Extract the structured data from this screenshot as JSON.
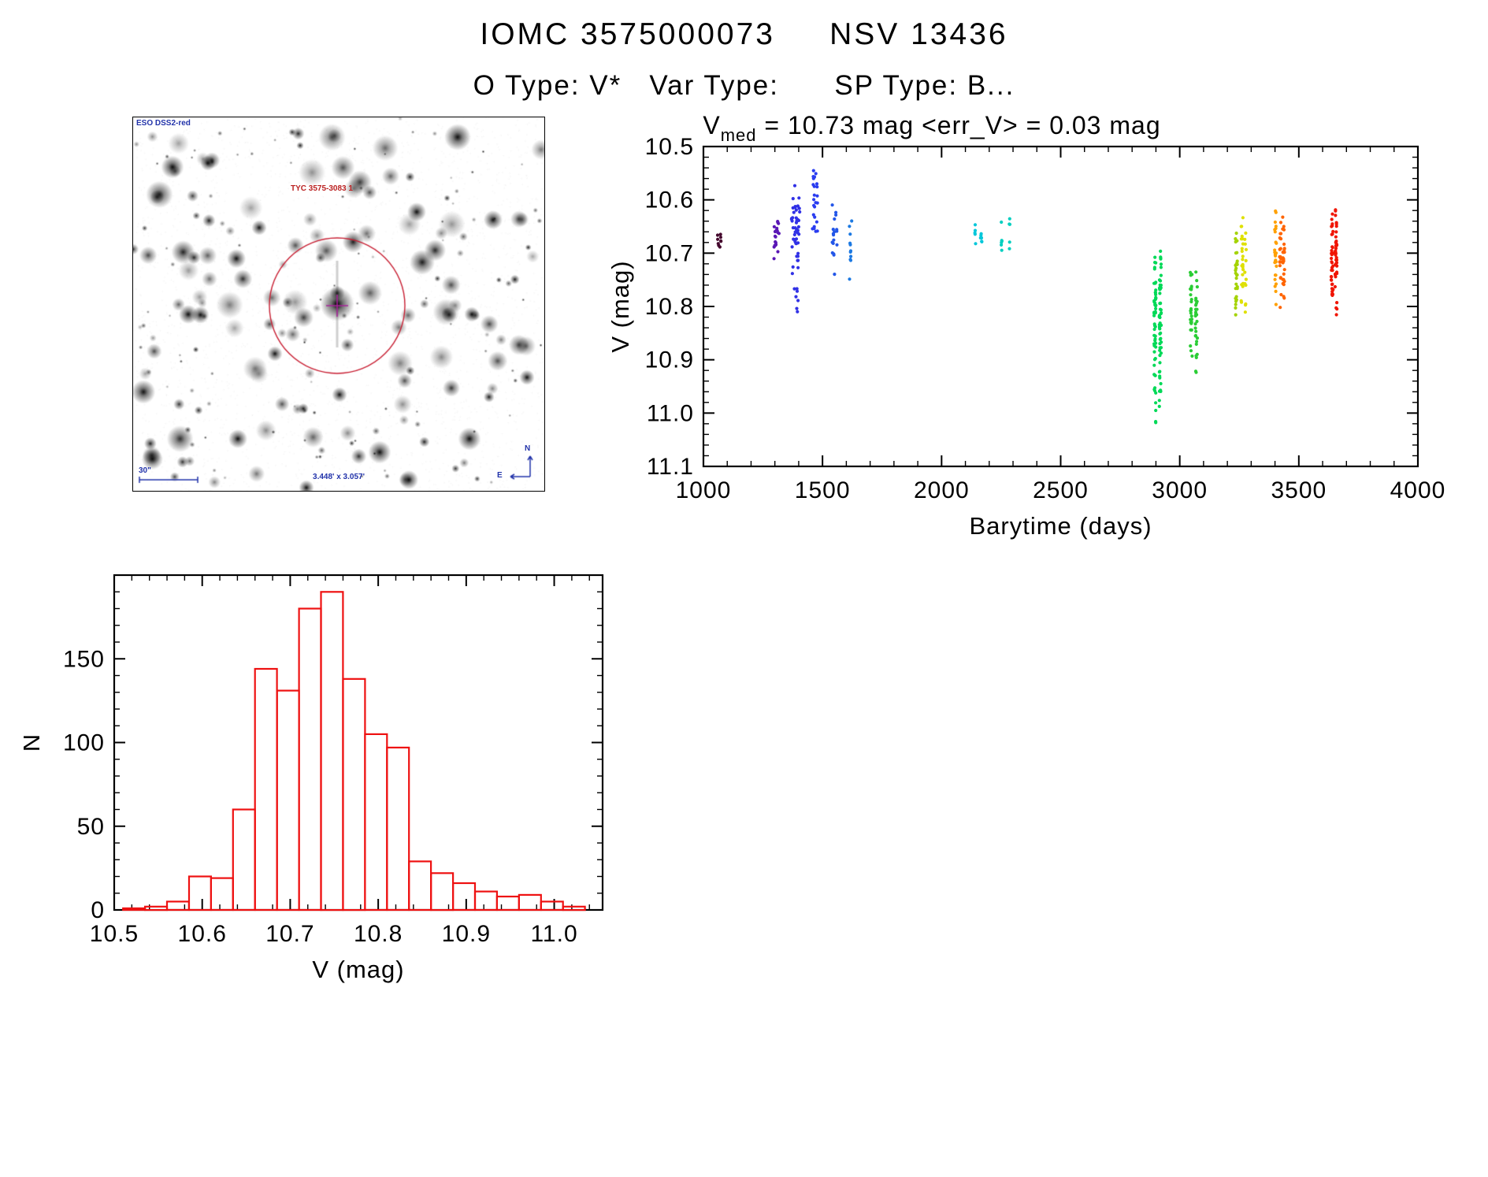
{
  "header": {
    "title": "IOMC 3575000073     NSV 13436",
    "subtitle": "O Type: V*   Var Type:      SP Type: B..."
  },
  "finder_chart": {
    "survey_label": "ESO DSS2-red",
    "target_label": "TYC 3575-3083 1",
    "scale_label": "30\"",
    "fov_label": "3.448' x 3.057'",
    "north_label": "N",
    "east_label": "E",
    "circle_color": "#c81e32",
    "label_color": "#2233aa"
  },
  "chart_data": [
    {
      "id": "light_curve",
      "type": "scatter",
      "title": {
        "pre": "V",
        "sub": "med",
        "post": " = 10.73 mag  <err_V> = 0.03 mag"
      },
      "v_med_mag": 10.73,
      "err_v_mag": 0.03,
      "xlabel": "Barytime (days)",
      "ylabel": "V (mag)",
      "xlim": [
        1000,
        4000
      ],
      "ylim": [
        10.5,
        11.1
      ],
      "y_inverted": true,
      "grid": false,
      "xticks": [
        1000,
        1500,
        2000,
        2500,
        3000,
        3500,
        4000
      ],
      "xtick_labels": [
        "1000",
        "1500",
        "2000",
        "2500",
        "3000",
        "3500",
        "4000"
      ],
      "yticks": [
        10.5,
        10.6,
        10.7,
        10.8,
        10.9,
        11.0,
        11.1
      ],
      "ytick_labels": [
        "10.5",
        "10.6",
        "10.7",
        "10.8",
        "10.9",
        "11.0",
        "11.1"
      ],
      "x_minor": 100,
      "y_minor": 0.02,
      "point_radius": 2.1,
      "clusters": [
        {
          "columns": [
            1062,
            1072
          ],
          "x_jitter": 4,
          "y_min": 10.655,
          "y_mode": 10.675,
          "y_max": 10.7,
          "n": 9,
          "color": "#45092e"
        },
        {
          "columns": [
            1300,
            1313
          ],
          "x_jitter": 5,
          "y_min": 10.625,
          "y_mode": 10.66,
          "y_max": 10.72,
          "n": 20,
          "color": "#5a17b5"
        },
        {
          "columns": [
            1375,
            1388,
            1400
          ],
          "x_jitter": 5,
          "y_min": 10.565,
          "y_mode": 10.645,
          "y_max": 10.76,
          "n": 48,
          "color": "#3131e6"
        },
        {
          "columns": [
            1390
          ],
          "x_jitter": 8,
          "y_min": 10.745,
          "y_mode": 10.78,
          "y_max": 10.835,
          "n": 7,
          "color": "#3131e6"
        },
        {
          "columns": [
            1463,
            1476
          ],
          "x_jitter": 5,
          "y_min": 10.51,
          "y_mode": 10.6,
          "y_max": 10.68,
          "n": 24,
          "color": "#2a3df0"
        },
        {
          "columns": [
            1546,
            1558
          ],
          "x_jitter": 5,
          "y_min": 10.6,
          "y_mode": 10.665,
          "y_max": 10.78,
          "n": 18,
          "color": "#2356e8"
        },
        {
          "columns": [
            1618
          ],
          "x_jitter": 5,
          "y_min": 10.63,
          "y_mode": 10.69,
          "y_max": 10.77,
          "n": 11,
          "color": "#1c79e2"
        },
        {
          "columns": [
            2140,
            2166
          ],
          "x_jitter": 3,
          "y_min": 10.63,
          "y_mode": 10.665,
          "y_max": 10.725,
          "n": 11,
          "color": "#00c7da"
        },
        {
          "columns": [
            2252,
            2284
          ],
          "x_jitter": 3,
          "y_min": 10.625,
          "y_mode": 10.68,
          "y_max": 10.725,
          "n": 11,
          "color": "#00cfc0"
        },
        {
          "columns": [
            2896,
            2918
          ],
          "x_jitter": 4,
          "y_min": 10.665,
          "y_mode": 10.8,
          "y_max": 11.03,
          "n": 115,
          "color": "#00d957"
        },
        {
          "columns": [
            3048,
            3070
          ],
          "x_jitter": 4,
          "y_min": 10.695,
          "y_mode": 10.8,
          "y_max": 10.945,
          "n": 55,
          "color": "#2bcd35"
        },
        {
          "columns": [
            3238
          ],
          "x_jitter": 4,
          "y_min": 10.64,
          "y_mode": 10.72,
          "y_max": 10.84,
          "n": 28,
          "color": "#a4d300"
        },
        {
          "columns": [
            3262,
            3276
          ],
          "x_jitter": 4,
          "y_min": 10.62,
          "y_mode": 10.7,
          "y_max": 10.83,
          "n": 34,
          "color": "#dfe000"
        },
        {
          "columns": [
            3402
          ],
          "x_jitter": 4,
          "y_min": 10.605,
          "y_mode": 10.7,
          "y_max": 10.8,
          "n": 28,
          "color": "#ffa000"
        },
        {
          "columns": [
            3422,
            3436
          ],
          "x_jitter": 4,
          "y_min": 10.6,
          "y_mode": 10.715,
          "y_max": 10.81,
          "n": 44,
          "color": "#ff6400"
        },
        {
          "columns": [
            3640,
            3656
          ],
          "x_jitter": 4,
          "y_min": 10.6,
          "y_mode": 10.7,
          "y_max": 10.835,
          "n": 75,
          "color": "#f01500"
        }
      ]
    },
    {
      "id": "v_histogram",
      "type": "bar",
      "xlabel": "V (mag)",
      "ylabel": "N",
      "xlim": [
        10.5,
        11.055
      ],
      "ylim": [
        0,
        200
      ],
      "grid": false,
      "xticks": [
        10.5,
        10.6,
        10.7,
        10.8,
        10.9,
        11.0
      ],
      "xtick_labels": [
        "10.5",
        "10.6",
        "10.7",
        "10.8",
        "10.9",
        "11.0"
      ],
      "yticks": [
        0,
        50,
        100,
        150
      ],
      "ytick_labels": [
        "0",
        "50",
        "100",
        "150"
      ],
      "x_minor": 0.02,
      "y_minor": 10,
      "bar_color": "#ee1111",
      "bin_start": 10.51,
      "bin_width": 0.025,
      "counts": [
        1,
        2,
        5,
        20,
        19,
        60,
        144,
        131,
        180,
        190,
        138,
        105,
        97,
        29,
        22,
        16,
        11,
        8,
        9,
        5,
        2
      ]
    }
  ]
}
